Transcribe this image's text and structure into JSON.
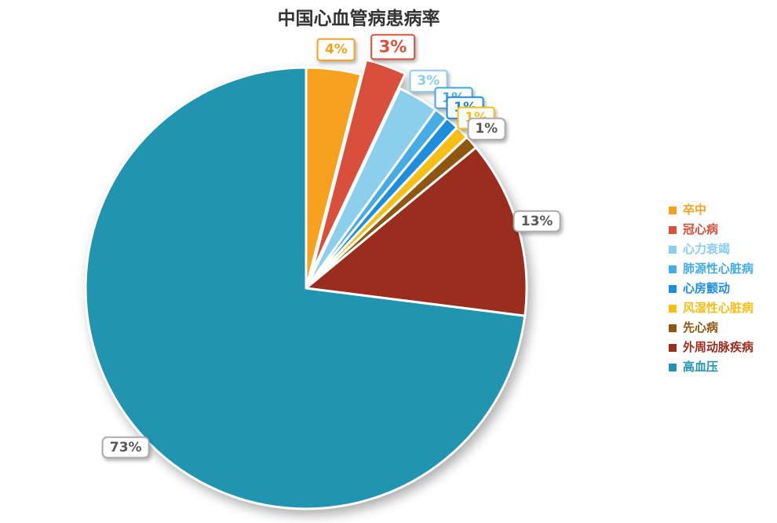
{
  "title": "中国心血管病患病率",
  "chart_data": {
    "type": "pie",
    "title": "中国心血管病患病率",
    "unit": "percent",
    "direction": "clockwise",
    "start_angle_deg": 0,
    "legend_position": "right",
    "gray_label_border": "#ACACAC",
    "gray_label_text": "#595959",
    "slices": [
      {
        "name": "卒中",
        "value": 4,
        "label": "4%",
        "color": "#F7A11E",
        "label_style": "colored"
      },
      {
        "name": "冠心病",
        "value": 3,
        "label": "3%",
        "color": "#D8503C",
        "label_style": "colored",
        "exploded": true,
        "emphasized": true
      },
      {
        "name": "心力衰竭",
        "value": 3,
        "label": "3%",
        "color": "#8BCFEC",
        "label_style": "colored"
      },
      {
        "name": "肺源性心脏病",
        "value": 1,
        "label": "1%",
        "color": "#45ACE4",
        "label_style": "colored"
      },
      {
        "name": "心房颤动",
        "value": 1,
        "label": "1%",
        "color": "#1E8DDB",
        "label_style": "colored"
      },
      {
        "name": "风湿性心脏病",
        "value": 1,
        "label": "1%",
        "color": "#F7BE16",
        "label_style": "colored"
      },
      {
        "name": "先心病",
        "value": 1,
        "label": "1%",
        "color": "#8E560F",
        "label_style": "gray"
      },
      {
        "name": "外周动脉疾病",
        "value": 13,
        "label": "13%",
        "color": "#9B2D1E",
        "label_style": "gray"
      },
      {
        "name": "高血压",
        "value": 73,
        "label": "73%",
        "color": "#2194B0",
        "label_style": "gray"
      }
    ]
  }
}
